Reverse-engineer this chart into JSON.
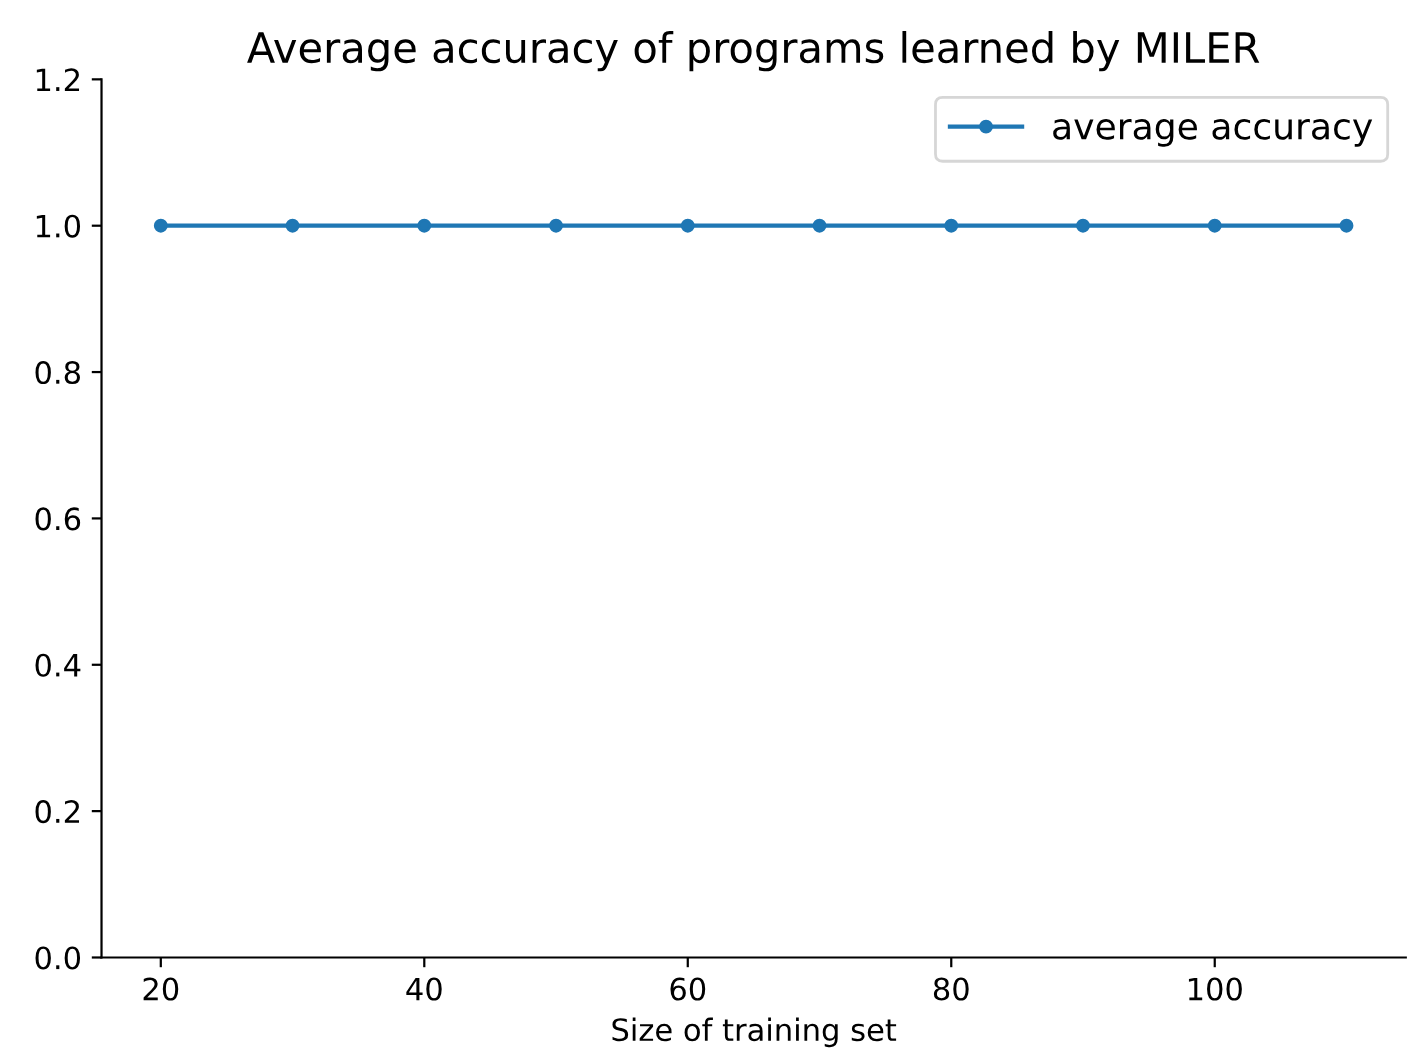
{
  "chart_data": {
    "type": "line",
    "title": "Average accuracy of programs learned by MILER",
    "xlabel": "Size of training set",
    "x": [
      20,
      30,
      40,
      50,
      60,
      70,
      80,
      90,
      100,
      110
    ],
    "series": [
      {
        "name": "average accuracy",
        "color": "#1f77b4",
        "values": [
          1.0,
          1.0,
          1.0,
          1.0,
          1.0,
          1.0,
          1.0,
          1.0,
          1.0,
          1.0
        ]
      }
    ],
    "xlim": [
      15.5,
      114.5
    ],
    "xticks": [
      20,
      40,
      60,
      80,
      100
    ],
    "ylim": [
      0,
      1.2
    ],
    "yticks": [
      {
        "value": 0,
        "label": "0.0"
      },
      {
        "value": 0.2,
        "label": "0.2"
      },
      {
        "value": 0.4,
        "label": "0.4"
      },
      {
        "value": 0.6,
        "label": "0.6"
      },
      {
        "value": 0.8,
        "label": "0.8"
      },
      {
        "value": 1.0,
        "label": "1.0"
      },
      {
        "value": 1.2,
        "label": "1.2"
      }
    ],
    "legend": "top right",
    "marker": "circle",
    "line_style": "solid",
    "grid": false
  }
}
